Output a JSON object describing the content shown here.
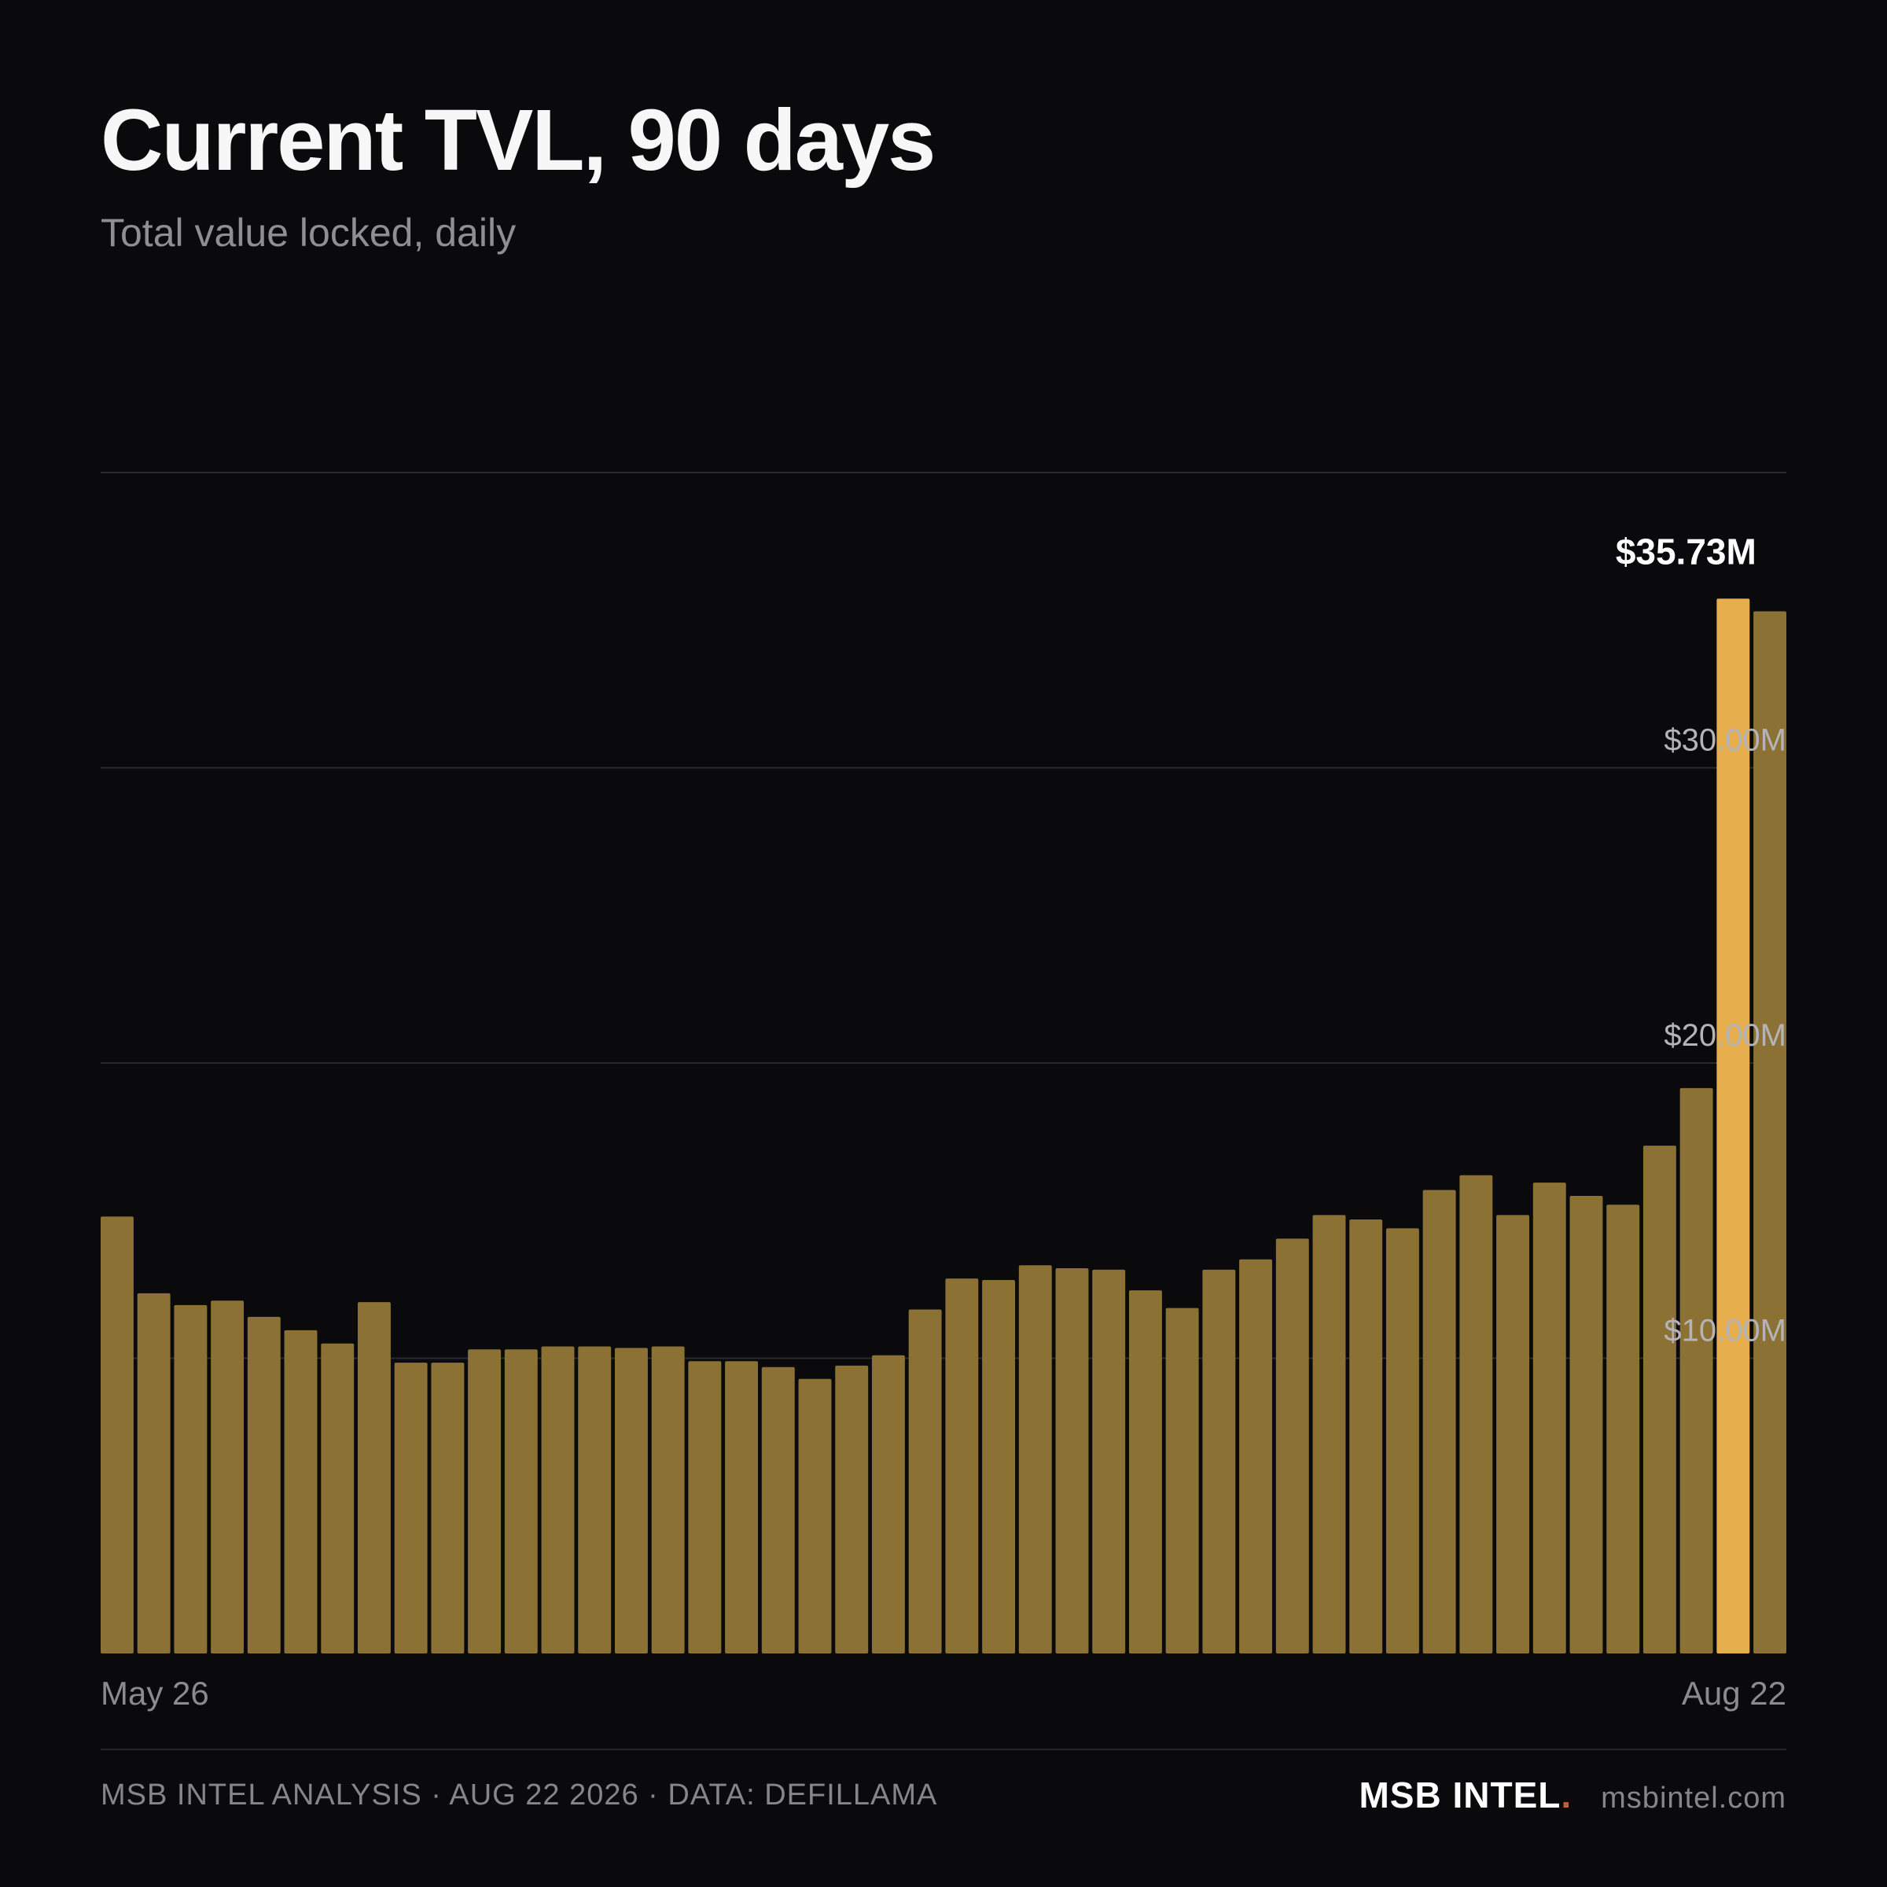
{
  "header": {
    "title": "Current TVL, 90 days",
    "subtitle": "Total value locked, daily"
  },
  "colors": {
    "background": "#0a0a0c",
    "bar": "#8b7234",
    "bar_highlight": "#e6ae4c",
    "brand_dot": "#c0603a"
  },
  "chart_data": {
    "type": "bar",
    "title": "Current TVL, 90 days",
    "subtitle": "Total value locked, daily",
    "xlabel": "",
    "ylabel": "",
    "x_tick_labels": [
      "May 26",
      "Aug 22"
    ],
    "y_ticks": [
      {
        "value": 10,
        "label": "$10.00M"
      },
      {
        "value": 20,
        "label": "$20.00M"
      },
      {
        "value": 30,
        "label": "$30.00M"
      }
    ],
    "ylim": [
      0,
      40
    ],
    "unit": "$M",
    "grid": true,
    "y_axis_position": "right",
    "values": [
      14.8,
      12.2,
      11.8,
      11.95,
      11.4,
      10.95,
      10.5,
      11.9,
      9.85,
      9.85,
      10.3,
      10.3,
      10.4,
      10.4,
      10.35,
      10.4,
      9.9,
      9.9,
      9.7,
      9.3,
      9.75,
      10.1,
      11.65,
      12.7,
      12.65,
      13.15,
      13.05,
      13.0,
      12.3,
      11.7,
      13.0,
      13.35,
      14.05,
      14.85,
      14.7,
      14.4,
      15.7,
      16.2,
      14.85,
      15.95,
      15.5,
      15.2,
      17.2,
      19.15,
      35.73,
      35.3
    ],
    "highlight_index": 44,
    "highlight_label": "$35.73M"
  },
  "footer": {
    "source": "MSB INTEL ANALYSIS · AUG 22 2026 · DATA: DEFILLAMA",
    "brand": "MSB INTEL",
    "brand_dot": ".",
    "site": "msbintel.com"
  }
}
